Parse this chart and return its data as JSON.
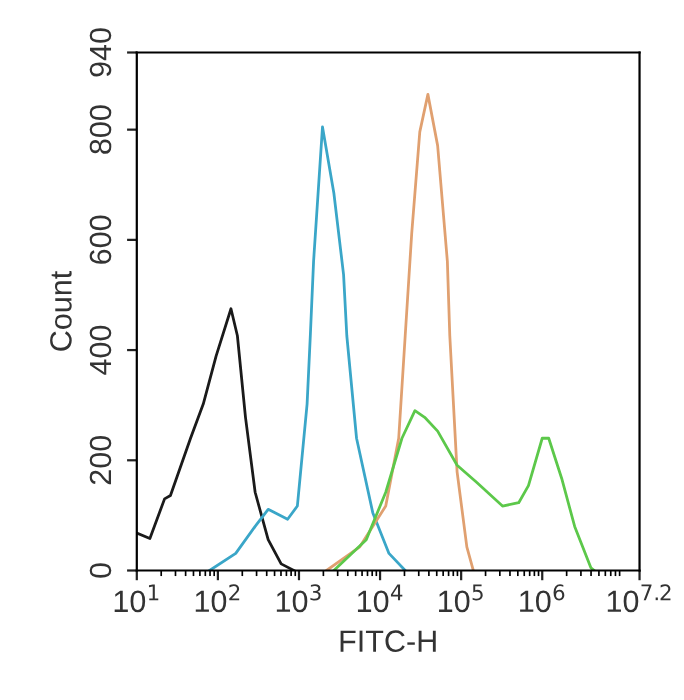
{
  "chart_data": {
    "type": "line",
    "xlabel": "FITC-H",
    "ylabel": "Count",
    "log": "x",
    "grid": false,
    "marker": "none",
    "line_style": "solid",
    "xlim": [
      10,
      15848932
    ],
    "xticks": [
      {
        "value": 10,
        "label": "10$^{1}$"
      },
      {
        "value": 100,
        "label": "10$^{2}$"
      },
      {
        "value": 1000,
        "label": "10$^{3}$"
      },
      {
        "value": 10000,
        "label": "10$^{4}$"
      },
      {
        "value": 100000,
        "label": "10$^{5}$"
      },
      {
        "value": 1000000,
        "label": "10$^{6}$"
      },
      {
        "value": 15848932,
        "label": "10$^{7.2}$"
      }
    ],
    "ylim": [
      0,
      940
    ],
    "yticks": [
      0,
      200,
      400,
      600,
      800,
      940
    ],
    "series": [
      {
        "color": "#1a1a1a",
        "x": [
          10,
          14.5,
          22,
          26,
          46,
          66,
          95,
          145,
          174,
          219,
          288,
          417,
          603,
          871
        ],
        "values": [
          68,
          58,
          130,
          136,
          240,
          302,
          389,
          475,
          426,
          278,
          142,
          56,
          12,
          0
        ]
      },
      {
        "color": "#3aa6c8",
        "x": [
          79,
          166,
          288,
          417,
          724,
          955,
          1259,
          1380,
          1514,
          1950,
          2692,
          3548,
          3890,
          5129,
          8128,
          12880,
          20420
        ],
        "values": [
          0,
          31,
          80,
          111,
          93,
          117,
          302,
          426,
          561,
          805,
          685,
          537,
          426,
          240,
          105,
          31,
          0
        ]
      },
      {
        "color": "#e0a070",
        "x": [
          2188,
          5623,
          11750,
          16980,
          20420,
          24550,
          30900,
          38900,
          51290,
          67610,
          72440,
          89130,
          117500,
          141300
        ],
        "values": [
          0,
          43,
          117,
          240,
          426,
          611,
          796,
          864,
          771,
          561,
          426,
          179,
          43,
          0
        ]
      },
      {
        "color": "#5cc84a",
        "x": [
          2692,
          6761,
          11750,
          18620,
          26920,
          35480,
          51290,
          89130,
          154900,
          323600,
          512900,
          676100,
          1000000,
          1202000,
          1738000,
          2512000,
          3981000,
          4365000
        ],
        "values": [
          0,
          56,
          142,
          240,
          290,
          278,
          253,
          191,
          160,
          117,
          123,
          154,
          240,
          240,
          167,
          80,
          5,
          0
        ]
      }
    ]
  }
}
